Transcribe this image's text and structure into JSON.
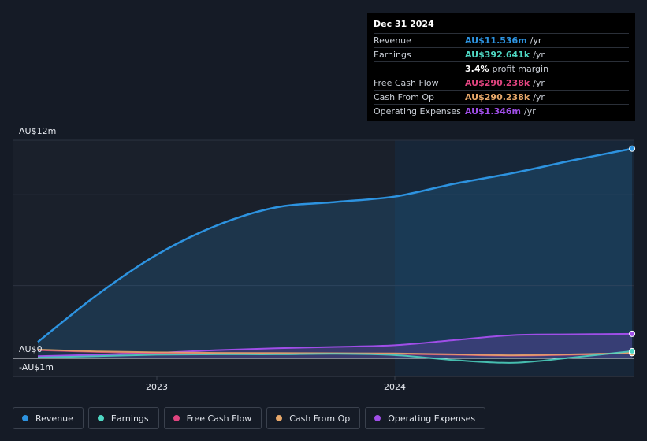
{
  "chart_data": {
    "type": "area",
    "y_axis": {
      "top_label": "AU$12m",
      "zero_label": "AU$0",
      "bottom_label": "-AU$1m",
      "ylim": [
        -1,
        12
      ]
    },
    "x_axis": {
      "tick_labels": [
        "2023",
        "2024"
      ],
      "xlim": [
        2022.5,
        2025.0
      ]
    },
    "highlight_start": 2024.0,
    "series": [
      {
        "name": "Revenue",
        "color": "#2d93e0",
        "fill": true,
        "x": [
          2022.5,
          2022.75,
          2023.0,
          2023.25,
          2023.5,
          2023.75,
          2024.0,
          2024.25,
          2024.5,
          2024.75,
          2024.997
        ],
        "y": [
          0.9,
          3.5,
          5.7,
          7.3,
          8.3,
          8.6,
          8.9,
          9.6,
          10.2,
          10.9,
          11.536
        ]
      },
      {
        "name": "Earnings",
        "color": "#4fd8c4",
        "fill": false,
        "x": [
          2022.5,
          2022.75,
          2023.0,
          2023.25,
          2023.5,
          2023.75,
          2024.0,
          2024.25,
          2024.5,
          2024.75,
          2024.997
        ],
        "y": [
          0.05,
          0.12,
          0.2,
          0.22,
          0.22,
          0.25,
          0.18,
          -0.1,
          -0.25,
          0.05,
          0.393
        ]
      },
      {
        "name": "Free Cash Flow",
        "color": "#e0447f",
        "fill": false,
        "x": [
          2022.5,
          2022.75,
          2023.0,
          2023.25,
          2023.5,
          2023.75,
          2024.0,
          2024.25,
          2024.5,
          2024.75,
          2024.997
        ],
        "y": [
          0.45,
          0.35,
          0.3,
          0.28,
          0.27,
          0.26,
          0.25,
          0.2,
          0.15,
          0.2,
          0.29
        ]
      },
      {
        "name": "Cash From Op",
        "color": "#e8a86a",
        "fill": false,
        "x": [
          2022.5,
          2022.75,
          2023.0,
          2023.25,
          2023.5,
          2023.75,
          2024.0,
          2024.25,
          2024.5,
          2024.75,
          2024.997
        ],
        "y": [
          0.48,
          0.38,
          0.33,
          0.3,
          0.29,
          0.28,
          0.27,
          0.22,
          0.17,
          0.22,
          0.29
        ]
      },
      {
        "name": "Operating Expenses",
        "color": "#a04ee8",
        "fill": true,
        "x": [
          2022.5,
          2022.75,
          2023.0,
          2023.25,
          2023.5,
          2023.75,
          2024.0,
          2024.25,
          2024.5,
          2024.75,
          2024.997
        ],
        "y": [
          0.12,
          0.2,
          0.3,
          0.45,
          0.55,
          0.63,
          0.72,
          1.0,
          1.28,
          1.32,
          1.346
        ]
      }
    ]
  },
  "tooltip": {
    "date": "Dec 31 2024",
    "rows": [
      {
        "label": "Revenue",
        "value": "AU$11.536m",
        "unit": "/yr",
        "color": "#2d93e0"
      },
      {
        "label": "Earnings",
        "value": "AU$392.641k",
        "unit": "/yr",
        "color": "#4fd8c4"
      },
      {
        "label": "",
        "value": "3.4%",
        "unit": "profit margin",
        "color": "#ffffff"
      },
      {
        "label": "Free Cash Flow",
        "value": "AU$290.238k",
        "unit": "/yr",
        "color": "#e0447f"
      },
      {
        "label": "Cash From Op",
        "value": "AU$290.238k",
        "unit": "/yr",
        "color": "#e8a86a"
      },
      {
        "label": "Operating Expenses",
        "value": "AU$1.346m",
        "unit": "/yr",
        "color": "#a04ee8"
      }
    ]
  },
  "legend": [
    {
      "label": "Revenue",
      "color": "#2d93e0"
    },
    {
      "label": "Earnings",
      "color": "#4fd8c4"
    },
    {
      "label": "Free Cash Flow",
      "color": "#e0447f"
    },
    {
      "label": "Cash From Op",
      "color": "#e8a86a"
    },
    {
      "label": "Operating Expenses",
      "color": "#a04ee8"
    }
  ]
}
